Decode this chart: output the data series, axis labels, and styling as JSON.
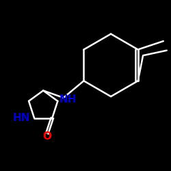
{
  "background": "#000000",
  "bond_color": "#ffffff",
  "atom_color_N": "#0000cd",
  "atom_color_O": "#ff0000",
  "linewidth": 1.8,
  "fontsize_heavy": 11,
  "figsize": [
    2.5,
    2.5
  ],
  "dpi": 100,
  "xlim": [
    0,
    10
  ],
  "ylim": [
    0,
    10
  ]
}
